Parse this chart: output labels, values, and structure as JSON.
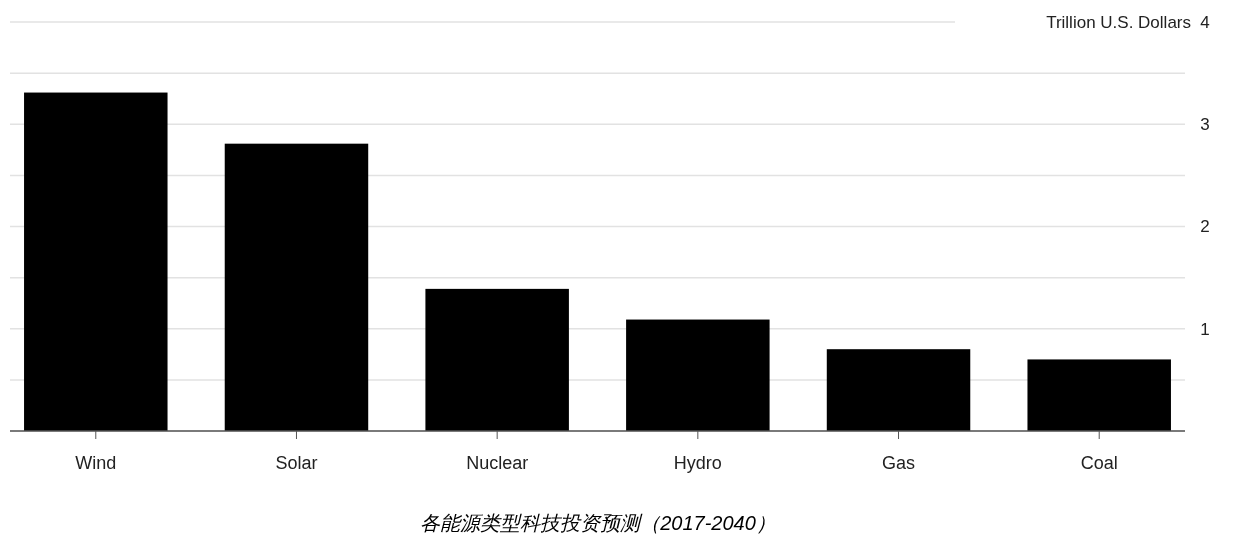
{
  "chart_data": {
    "type": "bar",
    "title": "各能源类型科技投资预测（2017-2040）",
    "categories": [
      "Wind",
      "Solar",
      "Nuclear",
      "Hydro",
      "Gas",
      "Coal"
    ],
    "values": [
      3.31,
      2.81,
      1.39,
      1.09,
      0.8,
      0.7
    ],
    "color": "#000000",
    "ylim": [
      0,
      4
    ],
    "yticks": [
      {
        "value": 0,
        "label": null
      },
      {
        "value": 0.5,
        "label": null
      },
      1,
      {
        "value": 1.5,
        "label": null
      },
      2,
      {
        "value": 2.5,
        "label": null
      },
      3,
      {
        "value": 3.5,
        "label": null
      },
      4
    ],
    "ylabel": "Trillion U.S. Dollars",
    "grid": "y"
  }
}
